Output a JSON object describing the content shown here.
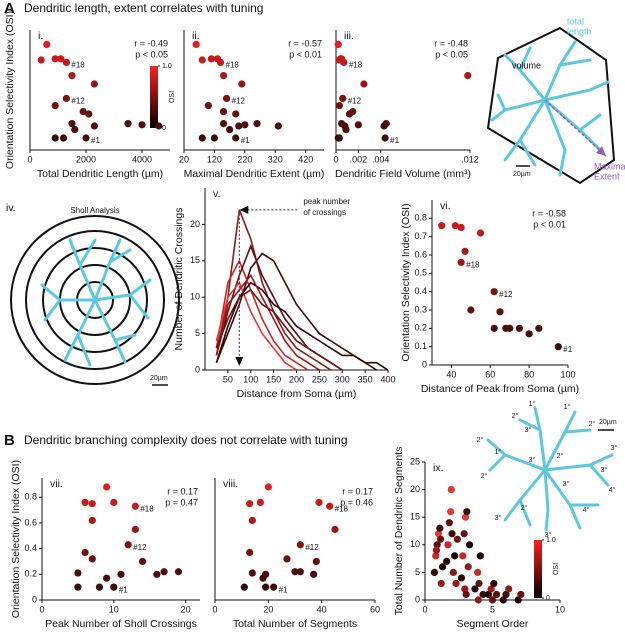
{
  "figure": {
    "section_A": {
      "letter": "A",
      "title": "Dendritic length, extent correlates with tuning"
    },
    "section_B": {
      "letter": "B",
      "title": "Dendritic branching complexity does not correlate with tuning"
    },
    "neuron_A": {
      "total_length": [
        "total",
        "length"
      ],
      "volume": "volume",
      "extent": [
        "Maximal",
        "Extent"
      ],
      "scale": "20µm"
    },
    "sholl": {
      "panel_label": "iv.",
      "title": "Sholl Analysis",
      "scale": "20µm"
    },
    "neuron_ix": {
      "scale": "20µm",
      "order_labels": [
        "1°",
        "1°",
        "2°",
        "3°",
        "2°",
        "3°",
        "2°",
        "1°",
        "2°",
        "3°",
        "2°",
        "3°",
        "4°",
        "3°",
        "4°",
        "3°",
        "2°",
        "3°"
      ]
    }
  },
  "chart_data": [
    {
      "type": "scatter",
      "panel_label": "i.",
      "xlabel": "Total Dendritic Length (µm)",
      "ylabel": "Orientation Selectivity Index (OSI)",
      "x": [
        600,
        400,
        900,
        1100,
        1300,
        1500,
        2300,
        1300,
        900,
        1900,
        2100,
        1500,
        3500,
        4000,
        4600,
        2300,
        1600,
        900,
        1200,
        2000
      ],
      "values": [
        0.88,
        0.75,
        0.76,
        0.76,
        0.73,
        0.62,
        0.55,
        0.43,
        0.37,
        0.32,
        0.3,
        0.22,
        0.22,
        0.21,
        0.2,
        0.2,
        0.17,
        0.1,
        0.1,
        0.1
      ],
      "point_labels": [
        null,
        null,
        null,
        null,
        "#18",
        null,
        null,
        "#12",
        null,
        null,
        null,
        null,
        null,
        null,
        null,
        null,
        null,
        null,
        null,
        "#1"
      ],
      "stats": [
        "r = -0.49",
        "p < 0.05"
      ],
      "xlim": [
        0,
        5000
      ],
      "xticks": [
        0,
        2000,
        4000
      ],
      "ylim": [
        0,
        1
      ],
      "yticks": [],
      "colorbar": {
        "label": "OSI",
        "ticks": [
          {
            "value": 1,
            "label": "1.0"
          },
          0
        ]
      }
    },
    {
      "type": "scatter",
      "panel_label": "ii.",
      "xlabel": "Maximal Dendritic Extent (µm)",
      "x": [
        60,
        80,
        110,
        130,
        140,
        150,
        210,
        160,
        100,
        150,
        190,
        150,
        260,
        220,
        200,
        330,
        170,
        80,
        120,
        190
      ],
      "values": [
        0.88,
        0.75,
        0.76,
        0.76,
        0.73,
        0.62,
        0.55,
        0.43,
        0.37,
        0.32,
        0.3,
        0.22,
        0.22,
        0.21,
        0.2,
        0.2,
        0.17,
        0.1,
        0.1,
        0.1
      ],
      "point_labels": [
        null,
        null,
        null,
        null,
        "#18",
        null,
        null,
        "#12",
        null,
        null,
        null,
        null,
        null,
        null,
        null,
        null,
        null,
        null,
        null,
        "#1"
      ],
      "stats": [
        "r = -0.57",
        "p < 0.01"
      ],
      "xlim": [
        20,
        480
      ],
      "xticks": [
        20,
        120,
        220,
        320,
        420
      ],
      "ylim": [
        0,
        1
      ],
      "yticks": []
    },
    {
      "type": "scatter",
      "panel_label": "iii.",
      "xlabel": "Dendritic Field Volume (mm³)",
      "x": [
        0.0002,
        0.0003,
        0.0004,
        0.0005,
        0.0007,
        0.0118,
        0.0025,
        0.0006,
        0.0003,
        0.0015,
        0.0012,
        0.0005,
        0.0045,
        0.002,
        0.0043,
        0.0008,
        0.0009,
        0.0002,
        0.0003,
        0.0044
      ],
      "values": [
        0.88,
        0.75,
        0.76,
        0.76,
        0.73,
        0.62,
        0.55,
        0.43,
        0.37,
        0.32,
        0.3,
        0.22,
        0.22,
        0.21,
        0.2,
        0.2,
        0.17,
        0.1,
        0.1,
        0.1
      ],
      "point_labels": [
        null,
        null,
        null,
        null,
        "#18",
        null,
        null,
        "#12",
        null,
        null,
        null,
        null,
        null,
        null,
        null,
        null,
        null,
        null,
        null,
        "#1"
      ],
      "stats": [
        "r = -0.48",
        "p < 0.05"
      ],
      "xlim": [
        0,
        0.012
      ],
      "xticks": [
        0,
        {
          "value": 0.002,
          "label": ".002"
        },
        {
          "value": 0.004,
          "label": ".004"
        },
        {
          "value": 0.012,
          "label": ".012"
        }
      ],
      "ylim": [
        0,
        1
      ],
      "yticks": []
    },
    {
      "type": "line",
      "panel_label": "v.",
      "xlabel": "Distance from Soma (µm)",
      "ylabel": "Number of Dendritic Crossings",
      "annotation": [
        "peak number",
        "of crossings"
      ],
      "x": [
        25,
        50,
        75,
        100,
        125,
        150,
        175,
        200,
        225,
        250,
        275,
        300,
        325,
        350,
        375,
        400
      ],
      "series": [
        {
          "color": "#8b1a1a",
          "values": [
            2,
            10,
            22,
            18,
            12,
            8,
            5,
            3,
            2,
            1,
            0,
            null,
            null,
            null,
            null,
            null
          ]
        },
        {
          "color": "#3a0a0a",
          "values": [
            1,
            5,
            9,
            14,
            16,
            15,
            12,
            9,
            7,
            5,
            4,
            3,
            2,
            1,
            0,
            null
          ]
        },
        {
          "color": "#c62828",
          "values": [
            3,
            12,
            15,
            11,
            7,
            4,
            2,
            1,
            0,
            null,
            null,
            null,
            null,
            null,
            null,
            null
          ]
        },
        {
          "color": "#5c1010",
          "values": [
            2,
            8,
            13,
            17,
            13,
            10,
            7,
            5,
            3,
            2,
            1,
            0,
            null,
            null,
            null,
            null
          ]
        },
        {
          "color": "#e53935",
          "values": [
            4,
            10,
            12,
            8,
            5,
            3,
            1,
            0,
            null,
            null,
            null,
            null,
            null,
            null,
            null,
            null
          ]
        },
        {
          "color": "#2b0505",
          "values": [
            1,
            6,
            10,
            12,
            11,
            9,
            8,
            6,
            5,
            4,
            3,
            2,
            2,
            1,
            1,
            0
          ]
        },
        {
          "color": "#a31515",
          "values": [
            2,
            9,
            11,
            13,
            10,
            7,
            4,
            2,
            1,
            0,
            null,
            null,
            null,
            null,
            null,
            null
          ]
        },
        {
          "color": "#700f0f",
          "values": [
            3,
            7,
            10,
            11,
            9,
            8,
            6,
            4,
            3,
            2,
            1,
            0,
            null,
            null,
            null,
            null
          ]
        }
      ],
      "xlim": [
        0,
        400
      ],
      "xticks": [
        50,
        100,
        150,
        200,
        250,
        300,
        350,
        400
      ],
      "ylim": [
        0,
        25
      ],
      "yticks": [
        0,
        5,
        10,
        15,
        20
      ]
    },
    {
      "type": "scatter",
      "panel_label": "vi.",
      "xlabel": "Distance of Peak from Soma (µm)",
      "ylabel": "Orientation Selectivity Index (OSI)",
      "x": [
        35,
        45,
        42,
        55,
        47,
        45,
        50,
        62,
        70,
        68,
        75,
        80,
        85,
        65,
        62,
        95
      ],
      "values": [
        0.76,
        0.75,
        0.76,
        0.72,
        0.62,
        0.56,
        0.3,
        0.4,
        0.2,
        0.2,
        0.2,
        0.17,
        0.2,
        0.29,
        0.2,
        0.1
      ],
      "point_labels": [
        null,
        null,
        null,
        null,
        null,
        "#18",
        null,
        "#12",
        null,
        null,
        null,
        null,
        null,
        null,
        null,
        "#1"
      ],
      "stats": [
        "r = -0.58",
        "p < 0.01"
      ],
      "xlim": [
        30,
        100
      ],
      "xticks": [
        40,
        60,
        80,
        100
      ],
      "ylim": [
        0,
        0.9
      ],
      "yticks": [
        0,
        0.1,
        0.2,
        0.3,
        0.4,
        0.5,
        0.6,
        0.7,
        0.8
      ]
    },
    {
      "type": "scatter",
      "panel_label": "vii.",
      "xlabel": "Peak Number of Sholl Crossings",
      "ylabel": "Orientation Selectivity Index (OSI)",
      "x": [
        9,
        7,
        6,
        10,
        13,
        7,
        13,
        12,
        6,
        7,
        14,
        17,
        19,
        5,
        16,
        11,
        9,
        10,
        5,
        8
      ],
      "values": [
        0.88,
        0.75,
        0.76,
        0.76,
        0.73,
        0.62,
        0.55,
        0.43,
        0.37,
        0.32,
        0.3,
        0.22,
        0.22,
        0.21,
        0.2,
        0.2,
        0.17,
        0.1,
        0.1,
        0.1
      ],
      "point_labels": [
        null,
        null,
        null,
        null,
        "#18",
        null,
        null,
        "#12",
        null,
        null,
        null,
        null,
        null,
        null,
        null,
        null,
        null,
        "#1",
        null,
        null
      ],
      "stats": [
        "r = 0.17",
        "p = 0.47"
      ],
      "xlim": [
        0,
        22
      ],
      "xticks": [
        0,
        10,
        20
      ],
      "ylim": [
        0,
        0.95
      ],
      "yticks": [
        0,
        0.2,
        0.4,
        0.6,
        0.8
      ]
    },
    {
      "type": "scatter",
      "panel_label": "viii.",
      "xlabel": "Total Number of Segments",
      "x": [
        20,
        13,
        17,
        39,
        43,
        14,
        45,
        32,
        13,
        27,
        38,
        32,
        30,
        14,
        37,
        19,
        18,
        22,
        19,
        11
      ],
      "values": [
        0.88,
        0.75,
        0.76,
        0.76,
        0.73,
        0.62,
        0.55,
        0.43,
        0.37,
        0.32,
        0.3,
        0.22,
        0.22,
        0.21,
        0.2,
        0.2,
        0.17,
        0.1,
        0.1,
        0.1
      ],
      "point_labels": [
        null,
        null,
        null,
        null,
        "#18",
        null,
        null,
        "#12",
        null,
        null,
        null,
        null,
        null,
        null,
        null,
        null,
        null,
        "#1",
        null,
        null
      ],
      "stats": [
        "r = 0.17",
        "p = 0.46"
      ],
      "xlim": [
        0,
        60
      ],
      "xticks": [
        0,
        20,
        40,
        60
      ],
      "ylim": [
        0,
        0.95
      ],
      "yticks": []
    },
    {
      "type": "scatter",
      "panel_label": "ix.",
      "xlabel": "Segment Order",
      "ylabel": "Total Number of Dendritic Segments",
      "x": [
        0.7,
        0.8,
        0.9,
        1.0,
        1.1,
        1.2,
        1.3,
        0.85,
        1.15,
        1.6,
        1.7,
        1.8,
        1.9,
        2.0,
        2.1,
        2.2,
        2.3,
        2.4,
        1.95,
        2.7,
        2.8,
        2.9,
        3.0,
        3.1,
        3.2,
        3.3,
        2.95,
        3.05,
        3.7,
        3.9,
        4.0,
        4.1,
        4.3,
        3.95,
        4.7,
        4.9,
        5.0,
        5.1,
        5.3,
        5.8,
        6.0,
        6.2,
        6.9,
        7.1
      ],
      "values": [
        5,
        8,
        10,
        12,
        13,
        3,
        6,
        9,
        11,
        7,
        10,
        14,
        16,
        12,
        5,
        8,
        3,
        11,
        20,
        4,
        8,
        12,
        15,
        16,
        6,
        10,
        2,
        1,
        2,
        5,
        3,
        8,
        1,
        0,
        1,
        2,
        0,
        3,
        1,
        0,
        1,
        2,
        0,
        1
      ],
      "colors": [
        "#2a0505",
        "#c62828",
        "#5c1010",
        "#e53935",
        "#3a0a0a",
        "#8b1a1a",
        "#1a0303",
        "#a31515",
        "#700f0f",
        "#2a0505",
        "#c62828",
        "#5c1010",
        "#e53935",
        "#3a0a0a",
        "#8b1a1a",
        "#1a0303",
        "#a31515",
        "#700f0f",
        "#e53935",
        "#2a0505",
        "#c62828",
        "#5c1010",
        "#e53935",
        "#3a0a0a",
        "#8b1a1a",
        "#1a0303",
        "#a31515",
        "#700f0f",
        "#2a0505",
        "#c62828",
        "#5c1010",
        "#1a0303",
        "#3a0a0a",
        "#8b1a1a",
        "#1a0303",
        "#a31515",
        "#700f0f",
        "#2a0505",
        "#5c1010",
        "#1a0303",
        "#3a0a0a",
        "#8b1a1a",
        "#1a0303",
        "#700f0f"
      ],
      "xlim": [
        0,
        10
      ],
      "xticks": [
        0,
        5,
        10
      ],
      "ylim": [
        0,
        25
      ],
      "yticks": [
        0,
        5,
        10,
        15,
        20,
        25
      ],
      "colorbar": {
        "label": "OSI",
        "ticks": [
          {
            "value": 1,
            "label": "1.0"
          },
          0
        ]
      }
    }
  ]
}
